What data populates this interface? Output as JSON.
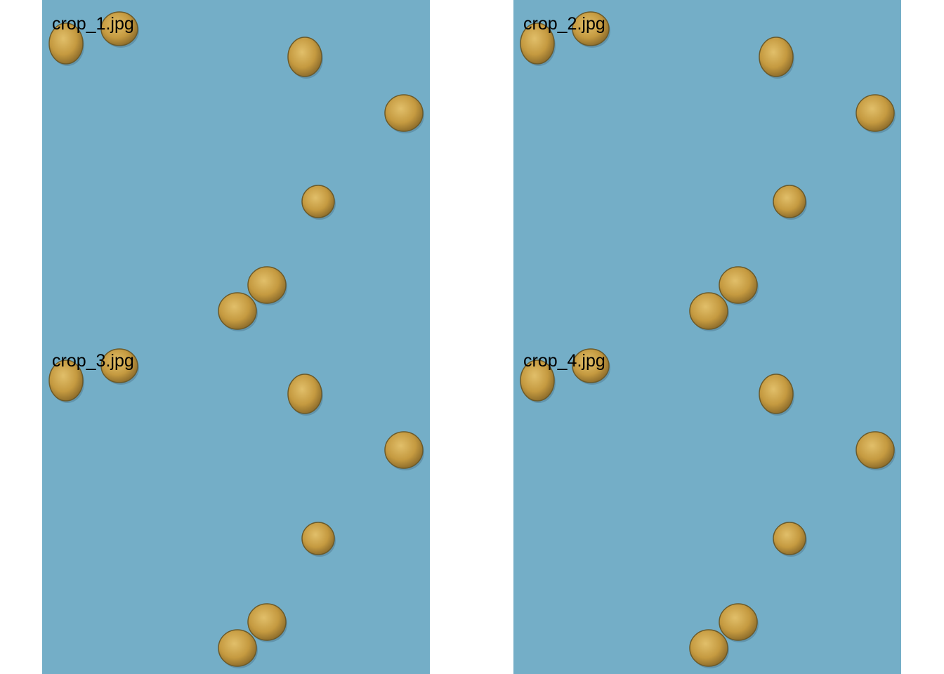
{
  "tiles": [
    {
      "label": "crop_1.jpg"
    },
    {
      "label": "crop_2.jpg"
    },
    {
      "label": "crop_3.jpg"
    },
    {
      "label": "crop_4.jpg"
    }
  ],
  "colors": {
    "background": "#74aec7",
    "seed": "#c59a40",
    "seed_edge": "#6b5a2a",
    "page": "#ffffff"
  },
  "content": {
    "object_name": "soybean-seed",
    "seeds_per_tile": 7
  }
}
